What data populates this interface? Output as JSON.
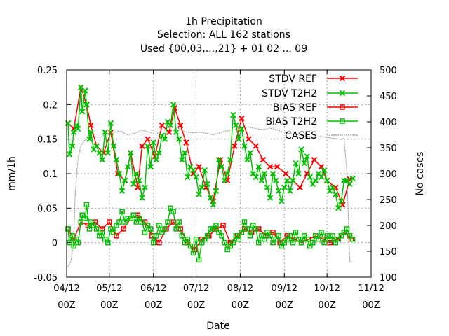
{
  "chart_data": {
    "type": "line",
    "title_lines": [
      "1h Precipitation",
      "Selection: ALL    162 stations",
      "Used {00,03,...,21} + 01 02 ... 09"
    ],
    "xlabel": "Date",
    "ylabel": "mm/1h",
    "y2label": "No cases",
    "xlim": [
      "2012-04-12T00",
      "2012-11-12T00"
    ],
    "ylim": [
      -0.05,
      0.25
    ],
    "y2lim": [
      100,
      500
    ],
    "x_ticks": [
      {
        "line1": "04/12",
        "line2": "00Z"
      },
      {
        "line1": "05/12",
        "line2": "00Z"
      },
      {
        "line1": "06/12",
        "line2": "00Z"
      },
      {
        "line1": "07/12",
        "line2": "00Z"
      },
      {
        "line1": "08/12",
        "line2": "00Z"
      },
      {
        "line1": "09/12",
        "line2": "00Z"
      },
      {
        "line1": "10/12",
        "line2": "00Z"
      },
      {
        "line1": "11/12",
        "line2": "00Z"
      }
    ],
    "y_ticks": [
      "-0.05",
      "0",
      "0.05",
      "0.1",
      "0.15",
      "0.2",
      "0.25"
    ],
    "y2_ticks": [
      "100",
      "150",
      "200",
      "250",
      "300",
      "350",
      "400",
      "450",
      "500"
    ],
    "grid": true,
    "legend_position": "top-right",
    "series": [
      {
        "name": "STDV REF",
        "color": "#ff0000",
        "marker": "x",
        "axis": "left",
        "x": [
          "2012-04-13",
          "2012-04-17",
          "2012-04-22",
          "2012-04-26",
          "2012-04-29",
          "2012-05-03",
          "2012-05-08",
          "2012-05-13",
          "2012-05-18",
          "2012-05-23",
          "2012-05-27",
          "2012-06-01",
          "2012-06-04",
          "2012-06-08",
          "2012-06-13",
          "2012-06-18",
          "2012-06-23",
          "2012-06-27",
          "2012-07-01",
          "2012-07-05",
          "2012-07-10",
          "2012-07-14",
          "2012-07-19",
          "2012-07-24",
          "2012-07-29",
          "2012-08-03",
          "2012-08-08",
          "2012-08-13",
          "2012-08-18",
          "2012-08-23",
          "2012-08-28",
          "2012-09-02",
          "2012-09-07",
          "2012-09-13",
          "2012-09-18",
          "2012-09-23",
          "2012-09-28",
          "2012-10-03",
          "2012-10-08",
          "2012-10-12",
          "2012-10-18",
          "2012-10-23",
          "2012-10-28"
        ],
        "values": [
          0.173,
          0.165,
          0.225,
          0.2,
          0.17,
          0.14,
          0.13,
          0.16,
          0.1,
          0.09,
          0.13,
          0.08,
          0.14,
          0.15,
          0.125,
          0.17,
          0.16,
          0.195,
          0.17,
          0.145,
          0.1,
          0.11,
          0.08,
          0.06,
          0.12,
          0.09,
          0.14,
          0.18,
          0.15,
          0.14,
          0.12,
          0.11,
          0.11,
          0.1,
          0.09,
          0.08,
          0.1,
          0.12,
          0.11,
          0.09,
          0.08,
          0.055,
          0.092
        ]
      },
      {
        "name": "STDV T2H2",
        "color": "#00c000",
        "marker": "x",
        "axis": "left",
        "x": [
          "2012-04-13",
          "2012-04-14",
          "2012-04-16",
          "2012-04-17",
          "2012-04-19",
          "2012-04-20",
          "2012-04-22",
          "2012-04-23",
          "2012-04-25",
          "2012-04-26",
          "2012-04-28",
          "2012-04-29",
          "2012-05-01",
          "2012-05-03",
          "2012-05-05",
          "2012-05-07",
          "2012-05-09",
          "2012-05-11",
          "2012-05-13",
          "2012-05-15",
          "2012-05-17",
          "2012-05-19",
          "2012-05-21",
          "2012-05-23",
          "2012-05-25",
          "2012-05-27",
          "2012-05-29",
          "2012-05-31",
          "2012-06-02",
          "2012-06-04",
          "2012-06-06",
          "2012-06-08",
          "2012-06-10",
          "2012-06-12",
          "2012-06-14",
          "2012-06-16",
          "2012-06-18",
          "2012-06-20",
          "2012-06-22",
          "2012-06-24",
          "2012-06-26",
          "2012-06-28",
          "2012-06-30",
          "2012-07-02",
          "2012-07-04",
          "2012-07-06",
          "2012-07-08",
          "2012-07-10",
          "2012-07-12",
          "2012-07-14",
          "2012-07-16",
          "2012-07-18",
          "2012-07-20",
          "2012-07-22",
          "2012-07-24",
          "2012-07-26",
          "2012-07-28",
          "2012-07-30",
          "2012-08-01",
          "2012-08-03",
          "2012-08-05",
          "2012-08-07",
          "2012-08-09",
          "2012-08-11",
          "2012-08-13",
          "2012-08-15",
          "2012-08-17",
          "2012-08-19",
          "2012-08-21",
          "2012-08-23",
          "2012-08-25",
          "2012-08-27",
          "2012-08-29",
          "2012-08-31",
          "2012-09-02",
          "2012-09-04",
          "2012-09-06",
          "2012-09-08",
          "2012-09-10",
          "2012-09-12",
          "2012-09-14",
          "2012-09-16",
          "2012-09-18",
          "2012-09-20",
          "2012-09-22",
          "2012-09-24",
          "2012-09-26",
          "2012-09-28",
          "2012-09-30",
          "2012-10-02",
          "2012-10-04",
          "2012-10-06",
          "2012-10-08",
          "2012-10-10",
          "2012-10-12",
          "2012-10-14",
          "2012-10-16",
          "2012-10-18",
          "2012-10-20",
          "2012-10-22",
          "2012-10-24",
          "2012-10-26",
          "2012-10-28",
          "2012-10-30"
        ],
        "values": [
          0.173,
          0.128,
          0.14,
          0.16,
          0.17,
          0.165,
          0.225,
          0.19,
          0.22,
          0.2,
          0.15,
          0.16,
          0.135,
          0.14,
          0.13,
          0.12,
          0.16,
          0.13,
          0.173,
          0.14,
          0.12,
          0.1,
          0.075,
          0.09,
          0.11,
          0.13,
          0.085,
          0.1,
          0.09,
          0.065,
          0.08,
          0.14,
          0.11,
          0.145,
          0.12,
          0.13,
          0.155,
          0.15,
          0.175,
          0.17,
          0.2,
          0.16,
          0.15,
          0.12,
          0.13,
          0.095,
          0.11,
          0.105,
          0.095,
          0.07,
          0.08,
          0.105,
          0.085,
          0.065,
          0.055,
          0.075,
          0.12,
          0.11,
          0.09,
          0.1,
          0.12,
          0.185,
          0.17,
          0.15,
          0.165,
          0.14,
          0.12,
          0.13,
          0.1,
          0.095,
          0.11,
          0.09,
          0.1,
          0.08,
          0.065,
          0.1,
          0.09,
          0.075,
          0.06,
          0.08,
          0.09,
          0.075,
          0.09,
          0.115,
          0.1,
          0.135,
          0.115,
          0.125,
          0.095,
          0.085,
          0.09,
          0.1,
          0.095,
          0.105,
          0.09,
          0.075,
          0.08,
          0.07,
          0.05,
          0.06,
          0.09,
          0.09,
          0.085,
          0.093
        ]
      },
      {
        "name": "BIAS REF",
        "color": "#ff0000",
        "marker": "square",
        "axis": "left",
        "x": [
          "2012-04-13",
          "2012-04-17",
          "2012-04-22",
          "2012-04-27",
          "2012-05-02",
          "2012-05-07",
          "2012-05-12",
          "2012-05-17",
          "2012-05-22",
          "2012-05-27",
          "2012-06-01",
          "2012-06-06",
          "2012-06-11",
          "2012-06-16",
          "2012-06-21",
          "2012-06-26",
          "2012-07-01",
          "2012-07-06",
          "2012-07-11",
          "2012-07-16",
          "2012-07-21",
          "2012-07-26",
          "2012-07-31",
          "2012-08-05",
          "2012-08-10",
          "2012-08-15",
          "2012-08-20",
          "2012-08-25",
          "2012-08-30",
          "2012-09-04",
          "2012-09-09",
          "2012-09-14",
          "2012-09-19",
          "2012-09-24",
          "2012-09-29",
          "2012-10-04",
          "2012-10-09",
          "2012-10-14",
          "2012-10-19",
          "2012-10-24",
          "2012-10-29"
        ],
        "values": [
          0.02,
          0.005,
          0.03,
          0.025,
          0.03,
          0.02,
          0.03,
          0.01,
          0.02,
          0.035,
          0.04,
          0.03,
          0.01,
          0.0,
          0.02,
          0.03,
          0.02,
          0.0,
          -0.01,
          0.005,
          0.01,
          0.02,
          0.025,
          0.0,
          0.01,
          0.02,
          0.015,
          0.02,
          0.01,
          0.015,
          0.0,
          0.01,
          0.005,
          0.0,
          0.005,
          0.01,
          0.005,
          0.0,
          0.005,
          0.015,
          0.005
        ]
      },
      {
        "name": "BIAS T2H2",
        "color": "#00c000",
        "marker": "square",
        "axis": "left",
        "x": [
          "2012-04-13",
          "2012-04-14",
          "2012-04-16",
          "2012-04-17",
          "2012-04-19",
          "2012-04-20",
          "2012-04-22",
          "2012-04-23",
          "2012-04-25",
          "2012-04-26",
          "2012-04-28",
          "2012-04-29",
          "2012-05-01",
          "2012-05-03",
          "2012-05-05",
          "2012-05-07",
          "2012-05-09",
          "2012-05-11",
          "2012-05-13",
          "2012-05-15",
          "2012-05-17",
          "2012-05-19",
          "2012-05-21",
          "2012-05-23",
          "2012-05-25",
          "2012-05-27",
          "2012-05-29",
          "2012-05-31",
          "2012-06-02",
          "2012-06-04",
          "2012-06-06",
          "2012-06-08",
          "2012-06-10",
          "2012-06-12",
          "2012-06-14",
          "2012-06-16",
          "2012-06-18",
          "2012-06-20",
          "2012-06-22",
          "2012-06-24",
          "2012-06-26",
          "2012-06-28",
          "2012-06-30",
          "2012-07-02",
          "2012-07-04",
          "2012-07-06",
          "2012-07-08",
          "2012-07-10",
          "2012-07-12",
          "2012-07-14",
          "2012-07-16",
          "2012-07-18",
          "2012-07-20",
          "2012-07-22",
          "2012-07-24",
          "2012-07-26",
          "2012-07-28",
          "2012-07-30",
          "2012-08-01",
          "2012-08-03",
          "2012-08-05",
          "2012-08-07",
          "2012-08-09",
          "2012-08-11",
          "2012-08-13",
          "2012-08-15",
          "2012-08-17",
          "2012-08-19",
          "2012-08-21",
          "2012-08-23",
          "2012-08-25",
          "2012-08-27",
          "2012-08-29",
          "2012-08-31",
          "2012-09-02",
          "2012-09-04",
          "2012-09-06",
          "2012-09-08",
          "2012-09-10",
          "2012-09-12",
          "2012-09-14",
          "2012-09-16",
          "2012-09-18",
          "2012-09-20",
          "2012-09-22",
          "2012-09-24",
          "2012-09-26",
          "2012-09-28",
          "2012-09-30",
          "2012-10-02",
          "2012-10-04",
          "2012-10-06",
          "2012-10-08",
          "2012-10-10",
          "2012-10-12",
          "2012-10-14",
          "2012-10-16",
          "2012-10-18",
          "2012-10-20",
          "2012-10-22",
          "2012-10-24",
          "2012-10-26",
          "2012-10-28",
          "2012-10-30"
        ],
        "values": [
          0.02,
          0.0,
          0.01,
          -0.005,
          0.005,
          0.0,
          0.03,
          0.04,
          0.035,
          0.055,
          0.02,
          0.03,
          0.025,
          0.02,
          0.01,
          0.015,
          0.005,
          0.0,
          0.02,
          0.015,
          0.025,
          0.03,
          0.045,
          0.03,
          0.035,
          0.035,
          0.04,
          0.03,
          0.035,
          0.03,
          0.015,
          0.025,
          0.02,
          0.0,
          0.01,
          0.025,
          0.015,
          0.02,
          0.03,
          0.05,
          0.045,
          0.02,
          0.03,
          0.01,
          0.0,
          0.005,
          -0.005,
          -0.015,
          0.005,
          -0.025,
          0.0,
          0.005,
          0.01,
          0.02,
          0.02,
          0.025,
          0.015,
          0.01,
          0.0,
          -0.01,
          -0.005,
          0.0,
          0.01,
          0.005,
          0.015,
          0.03,
          0.02,
          0.01,
          0.025,
          0.02,
          0.0,
          0.01,
          0.005,
          0.015,
          0.01,
          0.0,
          0.005,
          0.01,
          -0.005,
          0.0,
          0.005,
          0.01,
          0.0,
          0.015,
          0.005,
          0.0,
          0.01,
          0.005,
          -0.005,
          0.0,
          0.01,
          0.005,
          0.015,
          0.0,
          0.01,
          0.005,
          0.01,
          0.0,
          0.005,
          0.01,
          0.015,
          0.02,
          0.01,
          0.005
        ]
      },
      {
        "name": "CASES",
        "color": "#a0a0a0",
        "marker": "none",
        "dashed": true,
        "axis": "right",
        "x": [
          "2012-04-13",
          "2012-04-15",
          "2012-04-17",
          "2012-04-18",
          "2012-04-20",
          "2012-04-22",
          "2012-04-25",
          "2012-04-30",
          "2012-05-05",
          "2012-05-10",
          "2012-05-15",
          "2012-05-20",
          "2012-05-25",
          "2012-05-30",
          "2012-06-04",
          "2012-06-09",
          "2012-06-14",
          "2012-06-19",
          "2012-06-24",
          "2012-06-29",
          "2012-07-04",
          "2012-07-09",
          "2012-07-14",
          "2012-07-19",
          "2012-07-24",
          "2012-07-29",
          "2012-08-03",
          "2012-08-08",
          "2012-08-13",
          "2012-08-18",
          "2012-08-23",
          "2012-08-28",
          "2012-09-02",
          "2012-09-07",
          "2012-09-12",
          "2012-09-17",
          "2012-09-22",
          "2012-09-27",
          "2012-10-02",
          "2012-10-07",
          "2012-10-12",
          "2012-10-17",
          "2012-10-22",
          "2012-10-24",
          "2012-10-26",
          "2012-10-28",
          "2012-10-30"
        ],
        "values": [
          120,
          130,
          175,
          260,
          330,
          355,
          365,
          372,
          370,
          376,
          380,
          382,
          375,
          378,
          384,
          380,
          376,
          385,
          383,
          388,
          381,
          379,
          380,
          378,
          375,
          379,
          383,
          385,
          389,
          390,
          387,
          385,
          388,
          384,
          380,
          377,
          375,
          372,
          370,
          372,
          370,
          368,
          366,
          368,
          300,
          130,
          128
        ]
      }
    ]
  }
}
